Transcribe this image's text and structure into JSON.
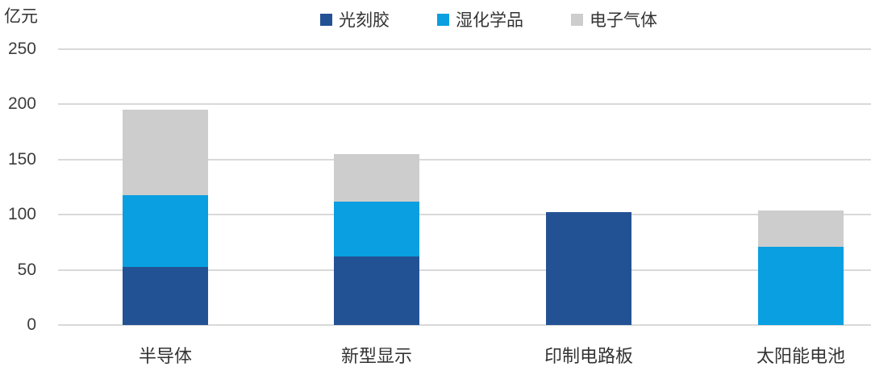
{
  "chart_data": {
    "type": "bar",
    "stacked": true,
    "title": "",
    "ylabel": "亿元",
    "xlabel": "",
    "ylim": [
      0,
      250
    ],
    "yticks": [
      0,
      50,
      100,
      150,
      200,
      250
    ],
    "grid": true,
    "legend_position": "top",
    "categories": [
      "半导体",
      "新型显示",
      "印制电路板",
      "太阳能电池"
    ],
    "series": [
      {
        "id": "photoresist",
        "name": "光刻胶",
        "color": "#235294",
        "values": [
          53,
          62,
          102,
          0
        ]
      },
      {
        "id": "wet-chemicals",
        "name": "湿化学品",
        "color": "#099FE0",
        "values": [
          65,
          50,
          0,
          71
        ]
      },
      {
        "id": "electronic-gases",
        "name": "电子气体",
        "color": "#cdcdcd",
        "values": [
          77,
          43,
          0,
          33
        ]
      }
    ],
    "totals": [
      195,
      155,
      102,
      104
    ],
    "colors": {
      "gridline": "#d9d9d9",
      "text": "#333333",
      "background": "#ffffff"
    }
  }
}
